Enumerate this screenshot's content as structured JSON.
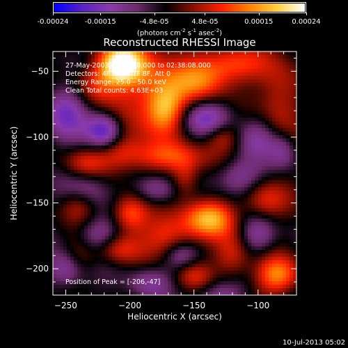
{
  "colorbar": {
    "tick_labels": [
      "-0.00024",
      "-0.00015",
      "-4.8e-05",
      "4.8e-05",
      "0.00015",
      "0.00024"
    ],
    "tick_values": [
      -0.00024,
      -0.00015,
      -4.8e-05,
      4.8e-05,
      0.00015,
      0.00024
    ],
    "range": [
      -0.00024,
      0.00024
    ],
    "unit_prefix": "(photons cm",
    "unit_exp1": "-2",
    "unit_mid": " s",
    "unit_exp2": "-1",
    "unit_mid2": " asec",
    "unit_exp3": "-2",
    "unit_suffix": ")",
    "colors": [
      "#0000ff",
      "#5a20c8",
      "#8a3aa8",
      "#6b2a6a",
      "#000000",
      "#8a1000",
      "#ff2000",
      "#ff8000",
      "#ffd040",
      "#ffffff"
    ]
  },
  "chart_data": {
    "type": "heatmap",
    "title": "Reconstructed RHESSI Image",
    "xlabel": "Heliocentric X (arcsec)",
    "ylabel": "Heliocentric Y (arcsec)",
    "xlim": [
      -260,
      -70
    ],
    "ylim": [
      -220,
      -35
    ],
    "x_ticks": [
      -250,
      -200,
      -150,
      -100
    ],
    "x_tick_labels": [
      "−250",
      "−200",
      "−150",
      "−100"
    ],
    "y_ticks": [
      -200,
      -150,
      -100,
      -50
    ],
    "y_tick_labels": [
      "−200",
      "−150",
      "−100",
      "−50"
    ],
    "info_lines": [
      "27-May-2003 02:35:40.000 to 02:38:08.000",
      "Detectors: 4F 5F 6F 7F 8F, Att 0",
      "Energy Range: 25.0 - 50.0 keV",
      "Clean    Total counts: 4.63E+03"
    ],
    "peak_label": "Position of Peak = [-206,-47]",
    "peak": [
      -206,
      -47
    ],
    "blobs": [
      {
        "x": -207,
        "y": -45,
        "sx": 12,
        "sy": 10,
        "v": 0.00024
      },
      {
        "x": -188,
        "y": -62,
        "sx": 20,
        "sy": 30,
        "v": 0.00012
      },
      {
        "x": -172,
        "y": -78,
        "sx": 10,
        "sy": 12,
        "v": 0.00014
      },
      {
        "x": -228,
        "y": -60,
        "sx": 12,
        "sy": 10,
        "v": 0.0001
      },
      {
        "x": -145,
        "y": -57,
        "sx": 16,
        "sy": 12,
        "v": 0.00014
      },
      {
        "x": -120,
        "y": -45,
        "sx": 18,
        "sy": 10,
        "v": 0.00011
      },
      {
        "x": -83,
        "y": -75,
        "sx": 12,
        "sy": 25,
        "v": 0.0001
      },
      {
        "x": -128,
        "y": -100,
        "sx": 10,
        "sy": 8,
        "v": 9e-05
      },
      {
        "x": -170,
        "y": -115,
        "sx": 25,
        "sy": 8,
        "v": 0.0001
      },
      {
        "x": -235,
        "y": -120,
        "sx": 12,
        "sy": 8,
        "v": 8e-05
      },
      {
        "x": -208,
        "y": -110,
        "sx": 12,
        "sy": 10,
        "v": 8e-05
      },
      {
        "x": -157,
        "y": -132,
        "sx": 8,
        "sy": 10,
        "v": 9e-05
      },
      {
        "x": -138,
        "y": -162,
        "sx": 14,
        "sy": 10,
        "v": 0.00018
      },
      {
        "x": -200,
        "y": -158,
        "sx": 10,
        "sy": 10,
        "v": 0.00014
      },
      {
        "x": -170,
        "y": -175,
        "sx": 14,
        "sy": 12,
        "v": 0.00012
      },
      {
        "x": -95,
        "y": -148,
        "sx": 12,
        "sy": 10,
        "v": 0.0001
      },
      {
        "x": -240,
        "y": -150,
        "sx": 10,
        "sy": 10,
        "v": 9e-05
      },
      {
        "x": -210,
        "y": -185,
        "sx": 12,
        "sy": 8,
        "v": 0.0001
      },
      {
        "x": -120,
        "y": -190,
        "sx": 10,
        "sy": 12,
        "v": 0.0001
      },
      {
        "x": -85,
        "y": -205,
        "sx": 12,
        "sy": 10,
        "v": 0.00016
      },
      {
        "x": -150,
        "y": -205,
        "sx": 10,
        "sy": 8,
        "v": 8e-05
      },
      {
        "x": -240,
        "y": -190,
        "sx": 10,
        "sy": 10,
        "v": 7e-05
      },
      {
        "x": -220,
        "y": -95,
        "sx": 10,
        "sy": 10,
        "v": -0.00018
      },
      {
        "x": -250,
        "y": -80,
        "sx": 12,
        "sy": 15,
        "v": -0.00012
      },
      {
        "x": -140,
        "y": -85,
        "sx": 14,
        "sy": 10,
        "v": -0.00012
      },
      {
        "x": -100,
        "y": -100,
        "sx": 12,
        "sy": 12,
        "v": -0.0001
      },
      {
        "x": -235,
        "y": -140,
        "sx": 12,
        "sy": 10,
        "v": -0.0001
      },
      {
        "x": -180,
        "y": -140,
        "sx": 12,
        "sy": 8,
        "v": -0.0001
      },
      {
        "x": -115,
        "y": -130,
        "sx": 12,
        "sy": 10,
        "v": -0.0001
      },
      {
        "x": -225,
        "y": -175,
        "sx": 12,
        "sy": 10,
        "v": -0.0001
      },
      {
        "x": -160,
        "y": -190,
        "sx": 10,
        "sy": 8,
        "v": -9e-05
      },
      {
        "x": -250,
        "y": -200,
        "sx": 10,
        "sy": 10,
        "v": -0.00012
      },
      {
        "x": -100,
        "y": -175,
        "sx": 10,
        "sy": 10,
        "v": -9e-05
      },
      {
        "x": -185,
        "y": -210,
        "sx": 12,
        "sy": 8,
        "v": -8e-05
      },
      {
        "x": -80,
        "y": -110,
        "sx": 8,
        "sy": 10,
        "v": -9e-05
      },
      {
        "x": -130,
        "y": -220,
        "sx": 14,
        "sy": 8,
        "v": -8e-05
      }
    ]
  },
  "timestamp": "10-Jul-2013 05:02"
}
